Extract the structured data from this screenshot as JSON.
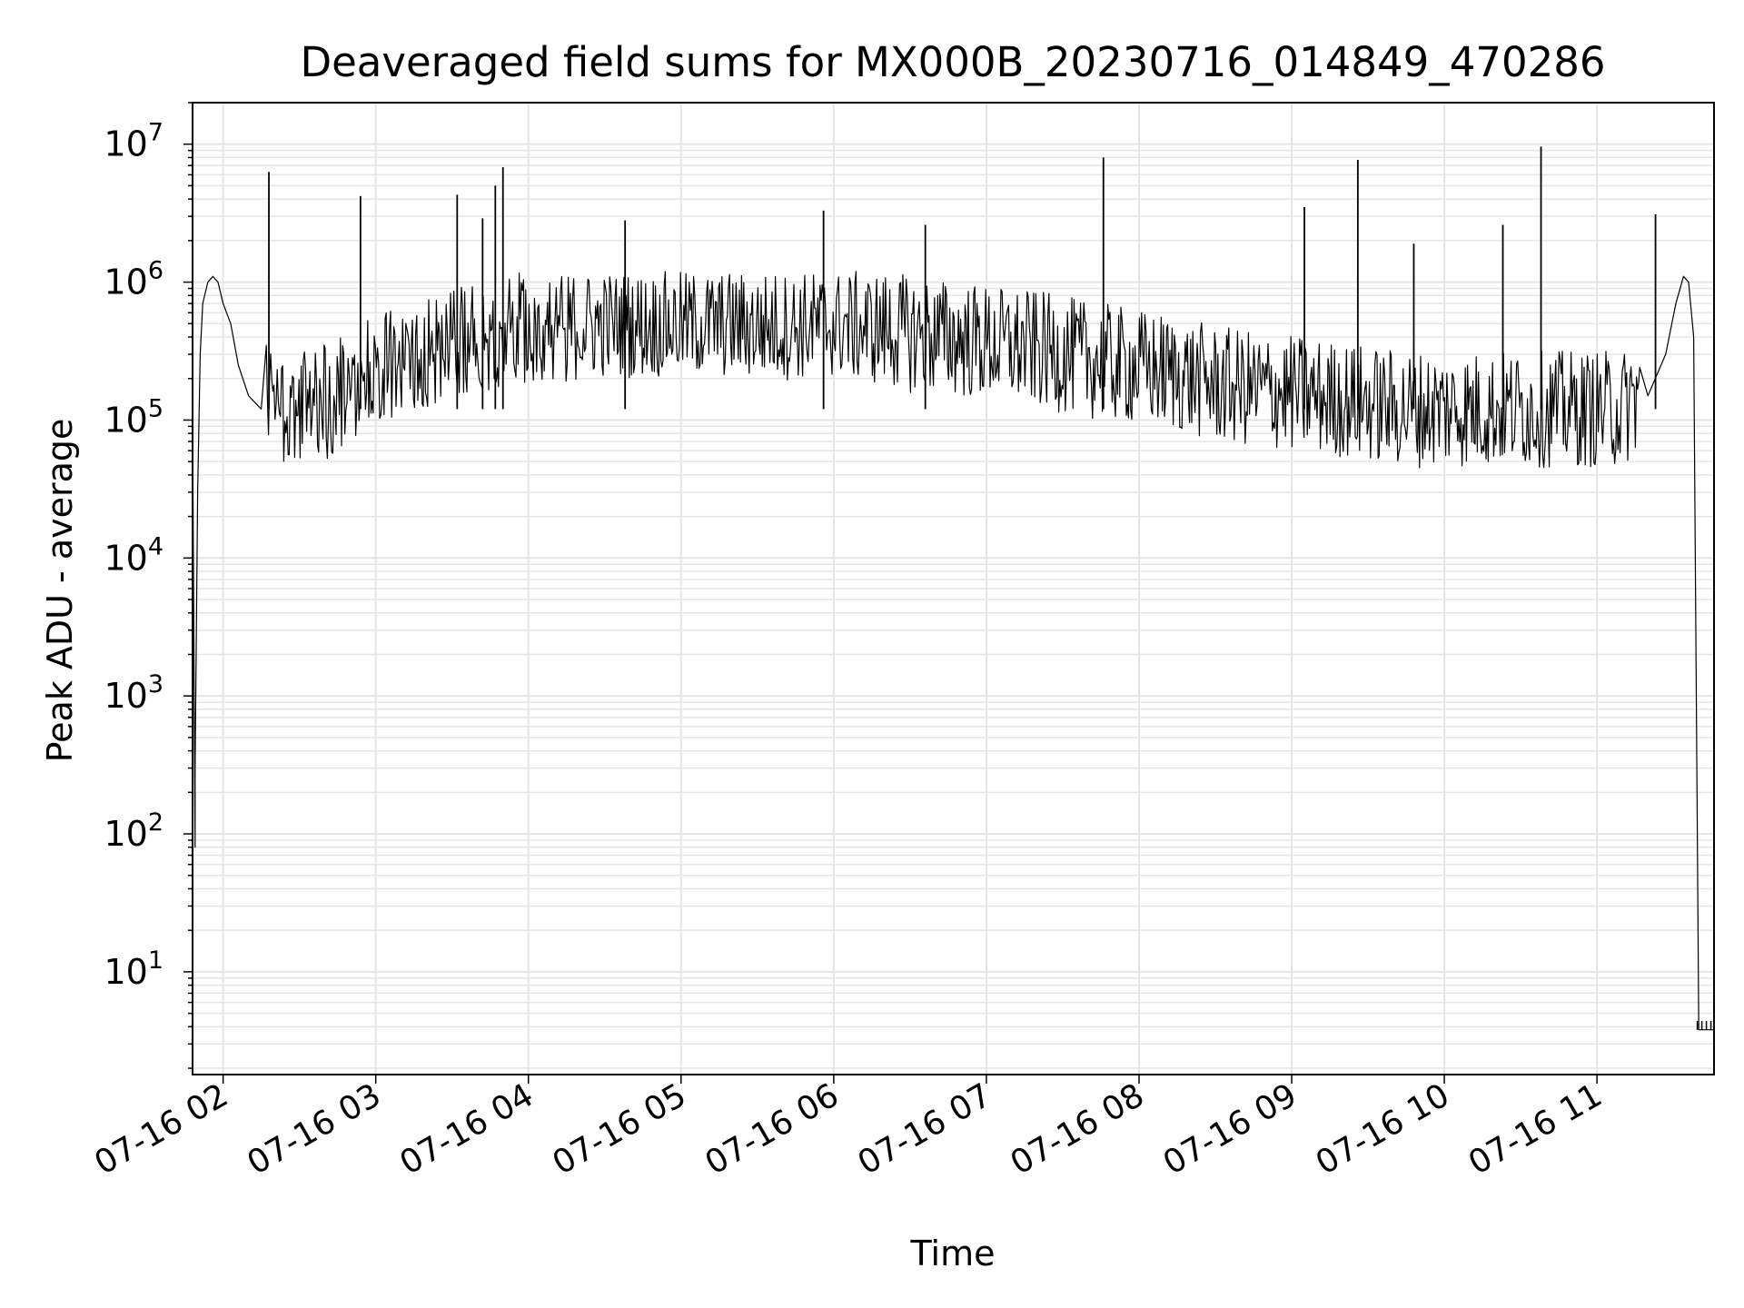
{
  "chart_data": {
    "type": "line",
    "title": "Deaveraged field sums for MX000B_20230716_014849_470286",
    "xlabel": "Time",
    "ylabel": "Peak ADU - average",
    "yscale": "log",
    "ylim": [
      1.8,
      20000000
    ],
    "xlim": [
      "07-16 01:48",
      "07-16 11:46"
    ],
    "x_ticks": [
      "07-16 02",
      "07-16 03",
      "07-16 04",
      "07-16 05",
      "07-16 06",
      "07-16 07",
      "07-16 08",
      "07-16 09",
      "07-16 10",
      "07-16 11"
    ],
    "y_ticks": [
      {
        "value": 10,
        "base": "10",
        "exp": "1"
      },
      {
        "value": 100,
        "base": "10",
        "exp": "2"
      },
      {
        "value": 1000,
        "base": "10",
        "exp": "3"
      },
      {
        "value": 10000,
        "base": "10",
        "exp": "4"
      },
      {
        "value": 100000,
        "base": "10",
        "exp": "5"
      },
      {
        "value": 1000000,
        "base": "10",
        "exp": "6"
      },
      {
        "value": 10000000,
        "base": "10",
        "exp": "7"
      }
    ],
    "grid": true,
    "line_color": "#000000",
    "grid_color": "#e5e5e5",
    "series": [
      {
        "x": [
          "07-16 01:48",
          "07-16 01:48",
          "07-16 01:49",
          "07-16 01:49",
          "07-16 01:50",
          "07-16 01:51",
          "07-16 01:52",
          "07-16 01:54",
          "07-16 01:56",
          "07-16 01:58",
          "07-16 02:00",
          "07-16 02:03",
          "07-16 02:06",
          "07-16 02:10",
          "07-16 02:15",
          "07-16 02:20",
          "07-16 02:25",
          "07-16 02:30",
          "07-16 02:40",
          "07-16 02:50",
          "07-16 03:00",
          "07-16 03:15",
          "07-16 03:30",
          "07-16 03:45",
          "07-16 04:00",
          "07-16 04:15",
          "07-16 04:30",
          "07-16 04:45",
          "07-16 05:00",
          "07-16 05:15",
          "07-16 05:30",
          "07-16 05:45",
          "07-16 06:00",
          "07-16 06:15",
          "07-16 06:30",
          "07-16 06:45",
          "07-16 07:00",
          "07-16 07:15",
          "07-16 07:30",
          "07-16 07:45",
          "07-16 08:00",
          "07-16 08:15",
          "07-16 08:30",
          "07-16 08:45",
          "07-16 09:00",
          "07-16 09:15",
          "07-16 09:30",
          "07-16 09:45",
          "07-16 10:00",
          "07-16 10:15",
          "07-16 10:30",
          "07-16 10:45",
          "07-16 11:00",
          "07-16 11:10",
          "07-16 11:20",
          "07-16 11:27",
          "07-16 11:31",
          "07-16 11:34",
          "07-16 11:36",
          "07-16 11:38",
          "07-16 11:40",
          "07-16 11:46"
        ],
        "y": [
          80,
          100000,
          80,
          300,
          30000,
          300000,
          700000,
          1000000,
          1100000,
          1000000,
          700000,
          500000,
          250000,
          150000,
          120000,
          110000,
          100000,
          100000,
          110000,
          150000,
          200000,
          250000,
          300000,
          350000,
          400000,
          420000,
          450000,
          450000,
          450000,
          450000,
          430000,
          430000,
          450000,
          400000,
          350000,
          330000,
          300000,
          280000,
          250000,
          220000,
          200000,
          180000,
          150000,
          140000,
          130000,
          120000,
          110000,
          100000,
          100000,
          100000,
          100000,
          100000,
          100000,
          100000,
          150000,
          300000,
          700000,
          1100000,
          1000000,
          400000,
          3.8,
          3.8
        ]
      }
    ],
    "spikes": [
      {
        "x": "07-16 02:18",
        "y": 6300000
      },
      {
        "x": "07-16 02:54",
        "y": 4200000
      },
      {
        "x": "07-16 03:32",
        "y": 4300000
      },
      {
        "x": "07-16 03:42",
        "y": 2900000
      },
      {
        "x": "07-16 03:47",
        "y": 5000000
      },
      {
        "x": "07-16 03:50",
        "y": 6800000
      },
      {
        "x": "07-16 04:38",
        "y": 2800000
      },
      {
        "x": "07-16 05:56",
        "y": 3300000
      },
      {
        "x": "07-16 06:36",
        "y": 2600000
      },
      {
        "x": "07-16 07:46",
        "y": 8000000
      },
      {
        "x": "07-16 09:05",
        "y": 3500000
      },
      {
        "x": "07-16 09:26",
        "y": 7700000
      },
      {
        "x": "07-16 09:48",
        "y": 1900000
      },
      {
        "x": "07-16 10:23",
        "y": 2600000
      },
      {
        "x": "07-16 10:38",
        "y": 9600000
      },
      {
        "x": "07-16 11:23",
        "y": 3100000
      }
    ]
  }
}
